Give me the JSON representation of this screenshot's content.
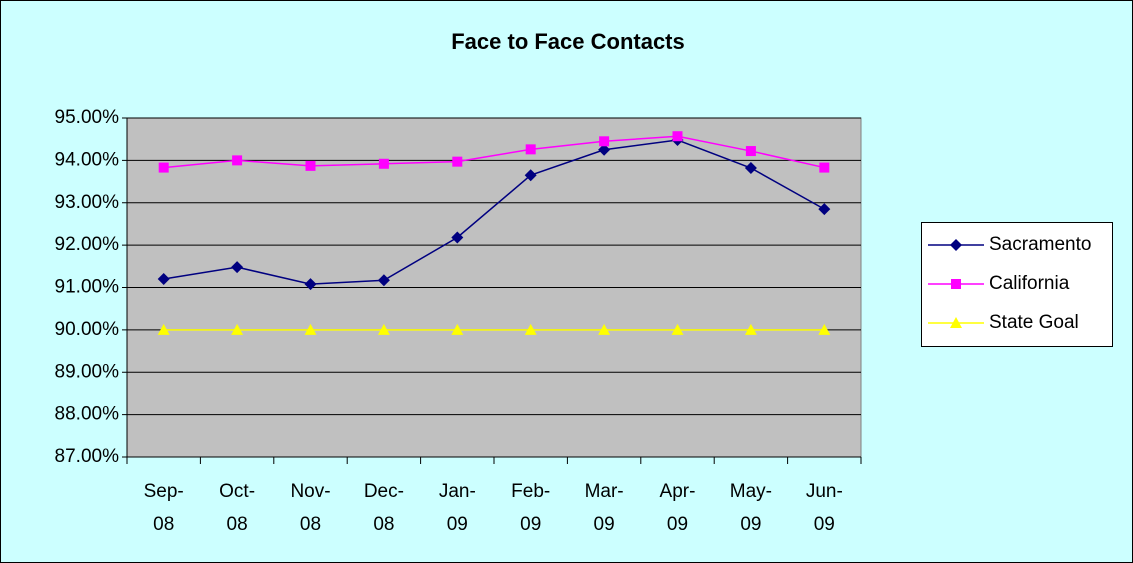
{
  "chart_data": {
    "type": "line",
    "title": "Face to Face Contacts",
    "categories": [
      "Sep-08",
      "Oct-08",
      "Nov-08",
      "Dec-08",
      "Jan-09",
      "Feb-09",
      "Mar-09",
      "Apr-09",
      "May-09",
      "Jun-09"
    ],
    "series": [
      {
        "name": "Sacramento",
        "color": "#000080",
        "marker": "diamond",
        "values": [
          91.2,
          91.48,
          91.08,
          91.17,
          92.18,
          93.65,
          94.25,
          94.48,
          93.82,
          92.85
        ]
      },
      {
        "name": "California",
        "color": "#ff00ff",
        "marker": "square",
        "values": [
          93.83,
          94.0,
          93.87,
          93.92,
          93.97,
          94.26,
          94.45,
          94.57,
          94.22,
          93.83
        ]
      },
      {
        "name": "State Goal",
        "color": "#ffff00",
        "marker": "triangle",
        "values": [
          90,
          90,
          90,
          90,
          90,
          90,
          90,
          90,
          90,
          90
        ]
      }
    ],
    "ylim": [
      87,
      95
    ],
    "yticks": [
      {
        "value": 87,
        "label": "87.00%"
      },
      {
        "value": 88,
        "label": "88.00%"
      },
      {
        "value": 89,
        "label": "89.00%"
      },
      {
        "value": 90,
        "label": "90.00%"
      },
      {
        "value": 91,
        "label": "91.00%"
      },
      {
        "value": 92,
        "label": "92.00%"
      },
      {
        "value": 93,
        "label": "93.00%"
      },
      {
        "value": 94,
        "label": "94.00%"
      },
      {
        "value": 95,
        "label": "95.00%"
      }
    ],
    "grid": true,
    "legend": "right"
  }
}
